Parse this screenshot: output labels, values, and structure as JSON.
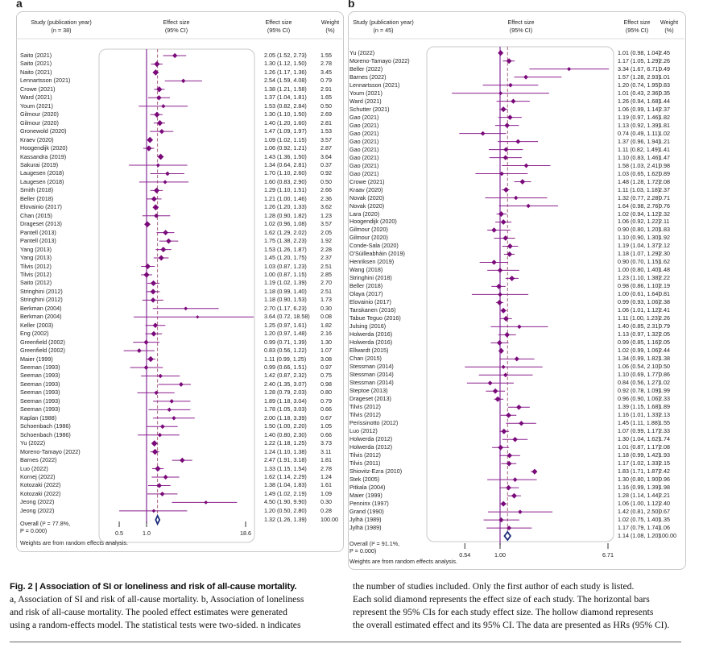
{
  "colors": {
    "marker": "#7a0a7a",
    "ci": "#8b1f8e",
    "null_line": "#8e3ea0",
    "pooled_line": "#a4687a",
    "overall": "#1a2a7a"
  },
  "caption": {
    "title": "Fig. 2 | Association of SI or loneliness and risk of all-cause mortality.",
    "left_lines": [
      "a, Association of SI and risk of all-cause mortality. b, Association of loneliness",
      "and risk of all-cause mortality. The pooled effect estimates were generated",
      "using a random-effects model. The statistical tests were two-sided. n indicates"
    ],
    "right_lines": [
      "the number of studies included. Only the first author of each study is listed.",
      "Each solid diamond represents the effect size of each study. The horizontal bars",
      "represent the 95% CIs for each study effect size. The hollow diamond represents",
      "the overall estimated effect and its 95% CI. The data are presented as HRs (95% CI)."
    ]
  },
  "chart_data": [
    {
      "panel": "a",
      "type": "forest",
      "scale": "log",
      "header": {
        "study": "Study (publication year)",
        "n": "(n = 38)",
        "effect": "Effect size",
        "ci": "(95% CI)",
        "weight": "Weight",
        "pct": "(%)"
      },
      "ticks": [
        {
          "v": 0.5,
          "label": "0.5"
        },
        {
          "v": 1.0,
          "label": "1.0"
        },
        {
          "v": 18.6,
          "label": "18.6"
        }
      ],
      "overall": {
        "label1": "Overall (I² = 77.8%,",
        "label2": "P = 0.000)",
        "est": 1.32,
        "lo": 1.26,
        "hi": 1.39,
        "weight": "100.00"
      },
      "note": "Weights are from random effects analysis.",
      "studies": [
        [
          "Saito (2021)",
          2.05,
          1.52,
          2.73,
          "1.55"
        ],
        [
          "Saito (2021)",
          1.3,
          1.12,
          1.5,
          "2.78"
        ],
        [
          "Naito (2021)",
          1.26,
          1.17,
          1.36,
          "3.45"
        ],
        [
          "Lennartsson (2021)",
          2.54,
          1.59,
          4.08,
          "0.79"
        ],
        [
          "Crowe (2021)",
          1.38,
          1.21,
          1.58,
          "2.91"
        ],
        [
          "Ward (2021)",
          1.37,
          1.04,
          1.81,
          "1.65"
        ],
        [
          "Youm (2021)",
          1.53,
          0.82,
          2.84,
          "0.50"
        ],
        [
          "Gilmour (2020)",
          1.3,
          1.1,
          1.5,
          "2.69"
        ],
        [
          "Gilmour (2020)",
          1.4,
          1.2,
          1.6,
          "2.81"
        ],
        [
          "Gronewold (2020)",
          1.47,
          1.09,
          1.97,
          "1.53"
        ],
        [
          "Kraev (2020)",
          1.09,
          1.02,
          1.15,
          "3.57"
        ],
        [
          "Hoogendijk (2020)",
          1.06,
          0.92,
          1.21,
          "2.87"
        ],
        [
          "Kassandra (2019)",
          1.43,
          1.36,
          1.5,
          "3.64"
        ],
        [
          "Sakurai (2019)",
          1.34,
          0.64,
          2.81,
          "0.37"
        ],
        [
          "Laugesen (2018)",
          1.7,
          1.1,
          2.6,
          "0.92"
        ],
        [
          "Laugesen (2018)",
          1.6,
          0.83,
          2.9,
          "0.50"
        ],
        [
          "Smith (2018)",
          1.29,
          1.1,
          1.51,
          "2.66"
        ],
        [
          "Beller (2018)",
          1.21,
          1.0,
          1.46,
          "2.36"
        ],
        [
          "Elovainio (2017)",
          1.26,
          1.2,
          1.33,
          "3.62"
        ],
        [
          "Chan (2015)",
          1.28,
          0.9,
          1.82,
          "1.23"
        ],
        [
          "Drageset (2013)",
          1.02,
          0.96,
          1.08,
          "3.57"
        ],
        [
          "Pantell (2013)",
          1.62,
          1.29,
          2.02,
          "2.05"
        ],
        [
          "Pantell (2013)",
          1.75,
          1.38,
          2.23,
          "1.92"
        ],
        [
          "Yang (2013)",
          1.53,
          1.26,
          1.87,
          "2.28"
        ],
        [
          "Yang (2013)",
          1.45,
          1.2,
          1.75,
          "2.37"
        ],
        [
          "Tilvis (2012)",
          1.03,
          0.87,
          1.23,
          "2.51"
        ],
        [
          "Tilvis (2012)",
          1.0,
          0.87,
          1.15,
          "2.85"
        ],
        [
          "Saito (2012)",
          1.19,
          1.02,
          1.39,
          "2.70"
        ],
        [
          "Stringhini (2012)",
          1.18,
          0.99,
          1.4,
          "2.51"
        ],
        [
          "Stringhini (2012)",
          1.18,
          0.9,
          1.53,
          "1.73"
        ],
        [
          "Berkman (2004)",
          2.7,
          1.17,
          6.23,
          "0.30"
        ],
        [
          "Berkman (2004)",
          3.64,
          0.72,
          18.58,
          "0.08"
        ],
        [
          "Keller (2003)",
          1.25,
          0.97,
          1.61,
          "1.82"
        ],
        [
          "Eng (2002)",
          1.2,
          0.97,
          1.48,
          "2.16"
        ],
        [
          "Greenfield (2002)",
          0.99,
          0.71,
          1.39,
          "1.30"
        ],
        [
          "Greenfield (2002)",
          0.83,
          0.56,
          1.22,
          "1.07"
        ],
        [
          "Maier (1999)",
          1.11,
          0.99,
          1.25,
          "3.08"
        ],
        [
          "Seeman (1993)",
          0.99,
          0.66,
          1.51,
          "0.97"
        ],
        [
          "Seeman (1993)",
          1.42,
          0.87,
          2.32,
          "0.75"
        ],
        [
          "Seeman (1993)",
          2.4,
          1.35,
          3.07,
          "0.98"
        ],
        [
          "Seeman (1993)",
          1.28,
          0.79,
          2.03,
          "0.80"
        ],
        [
          "Seeman (1993)",
          1.89,
          1.18,
          3.04,
          "0.79"
        ],
        [
          "Seeman (1993)",
          1.78,
          1.05,
          3.03,
          "0.66"
        ],
        [
          "Kaplan (1988)",
          2.0,
          1.18,
          3.39,
          "0.67"
        ],
        [
          "Schoenbach (1986)",
          1.5,
          1.0,
          2.2,
          "1.05"
        ],
        [
          "Schoenbach (1986)",
          1.4,
          0.8,
          2.3,
          "0.66"
        ],
        [
          "Yu (2022)",
          1.22,
          1.18,
          1.25,
          "3.73"
        ],
        [
          "Moreno-Tamayo (2022)",
          1.24,
          1.1,
          1.38,
          "3.11"
        ],
        [
          "Barnes (2022)",
          2.47,
          1.91,
          3.18,
          "1.81"
        ],
        [
          "Luo (2022)",
          1.33,
          1.15,
          1.54,
          "2.78"
        ],
        [
          "Kornej (2022)",
          1.62,
          1.14,
          2.29,
          "1.24"
        ],
        [
          "Kotozaki (2022)",
          1.38,
          1.04,
          1.83,
          "1.61"
        ],
        [
          "Kotozaki (2022)",
          1.49,
          1.02,
          2.19,
          "1.09"
        ],
        [
          "Jeong (2022)",
          4.5,
          1.9,
          9.9,
          "0.30"
        ],
        [
          "Jeong (2022)",
          1.2,
          0.5,
          2.8,
          "0.28"
        ]
      ]
    },
    {
      "panel": "b",
      "type": "forest",
      "scale": "log",
      "header": {
        "study": "Study (publication year)",
        "n": "(n = 45)",
        "effect": "Effect size",
        "ci": "(95% CI)",
        "weight": "Weight",
        "pct": "(%)"
      },
      "ticks": [
        {
          "v": 0.54,
          "label": "0.54"
        },
        {
          "v": 1.0,
          "label": "1.00"
        },
        {
          "v": 6.71,
          "label": "6.71"
        }
      ],
      "overall": {
        "label1": "Overall (I² = 91.1%,",
        "label2": "P = 0.000)",
        "est": 1.14,
        "lo": 1.08,
        "hi": 1.2,
        "weight": "100.00"
      },
      "note": "Weights are from random effects analysis.",
      "studies": [
        [
          "Yu (2022)",
          1.01,
          0.98,
          1.04,
          "2.45"
        ],
        [
          "Moreno-Tamayo (2022)",
          1.17,
          1.05,
          1.29,
          "2.26"
        ],
        [
          "Beller (2022)",
          3.34,
          1.67,
          6.71,
          "0.49"
        ],
        [
          "Barnes (2022)",
          1.57,
          1.28,
          2.93,
          "1.01"
        ],
        [
          "Lennartsson (2021)",
          1.2,
          0.74,
          1.95,
          "0.83"
        ],
        [
          "Youm (2021)",
          1.01,
          0.43,
          2.36,
          "0.35"
        ],
        [
          "Ward (2021)",
          1.26,
          0.94,
          1.68,
          "1.44"
        ],
        [
          "Schutter (2021)",
          1.06,
          0.99,
          1.14,
          "2.37"
        ],
        [
          "Gao (2021)",
          1.19,
          0.97,
          1.46,
          "1.82"
        ],
        [
          "Gao (2021)",
          1.13,
          0.92,
          1.39,
          "1.81"
        ],
        [
          "Gao (2021)",
          0.74,
          0.49,
          1.11,
          "1.02"
        ],
        [
          "Gao (2021)",
          1.37,
          0.96,
          1.94,
          "1.21"
        ],
        [
          "Gao (2021)",
          1.11,
          0.82,
          1.49,
          "1.41"
        ],
        [
          "Gao (2021)",
          1.1,
          0.83,
          1.46,
          "1.47"
        ],
        [
          "Gao (2021)",
          1.58,
          1.03,
          2.41,
          "0.98"
        ],
        [
          "Gao (2021)",
          1.03,
          0.65,
          1.62,
          "0.89"
        ],
        [
          "Crowe (2021)",
          1.48,
          1.28,
          1.72,
          "2.08"
        ],
        [
          "Kraav (2020)",
          1.11,
          1.03,
          1.18,
          "2.37"
        ],
        [
          "Novak (2020)",
          1.32,
          0.77,
          2.28,
          "0.71"
        ],
        [
          "Novak (2020)",
          1.64,
          0.98,
          2.76,
          "0.76"
        ],
        [
          "Lara (2020)",
          1.02,
          0.94,
          1.12,
          "2.32"
        ],
        [
          "Hoogendijk (2020)",
          1.06,
          0.92,
          1.22,
          "2.11"
        ],
        [
          "Gilmour (2020)",
          0.9,
          0.8,
          1.2,
          "1.83"
        ],
        [
          "Gilmour (2020)",
          1.1,
          0.9,
          1.3,
          "1.92"
        ],
        [
          "Conde-Sala (2020)",
          1.19,
          1.04,
          1.37,
          "2.12"
        ],
        [
          "O'Súilleabháin (2019)",
          1.18,
          1.07,
          1.29,
          "2.30"
        ],
        [
          "Henriksen (2019)",
          0.9,
          0.7,
          1.15,
          "1.62"
        ],
        [
          "Wang (2018)",
          1.0,
          0.8,
          1.4,
          "1.48"
        ],
        [
          "Stringhini (2018)",
          1.23,
          1.1,
          1.38,
          "2.22"
        ],
        [
          "Beller (2018)",
          0.98,
          0.86,
          1.1,
          "2.19"
        ],
        [
          "Olaya (2017)",
          1.0,
          0.61,
          1.64,
          "0.81"
        ],
        [
          "Elovainio (2017)",
          0.99,
          0.93,
          1.06,
          "2.38"
        ],
        [
          "Tanskanen (2016)",
          1.06,
          1.01,
          1.12,
          "2.41"
        ],
        [
          "Tabue Teguo (2016)",
          1.11,
          1.0,
          1.23,
          "2.26"
        ],
        [
          "Julsing (2016)",
          1.4,
          0.85,
          2.31,
          "0.79"
        ],
        [
          "Holwerda (2016)",
          1.13,
          0.97,
          1.32,
          "2.05"
        ],
        [
          "Holwerda (2016)",
          0.99,
          0.85,
          1.16,
          "2.05"
        ],
        [
          "Ellwardt (2015)",
          1.02,
          0.99,
          1.06,
          "2.44"
        ],
        [
          "Chan (2015)",
          1.34,
          0.99,
          1.82,
          "1.38"
        ],
        [
          "Stessman (2014)",
          1.06,
          0.54,
          2.1,
          "0.50"
        ],
        [
          "Stessman (2014)",
          1.1,
          0.69,
          1.77,
          "0.86"
        ],
        [
          "Stessman (2014)",
          0.84,
          0.56,
          1.27,
          "1.02"
        ],
        [
          "Steptoe (2013)",
          0.92,
          0.78,
          1.09,
          "1.99"
        ],
        [
          "Drageset (2013)",
          0.96,
          0.9,
          1.06,
          "2.33"
        ],
        [
          "Tilvis (2012)",
          1.39,
          1.15,
          1.68,
          "1.89"
        ],
        [
          "Tilvis (2012)",
          1.16,
          1.01,
          1.33,
          "2.13"
        ],
        [
          "Perissinotto (2012)",
          1.45,
          1.11,
          1.88,
          "1.55"
        ],
        [
          "Luo (2012)",
          1.07,
          0.99,
          1.17,
          "2.33"
        ],
        [
          "Holwerda (2012)",
          1.3,
          1.04,
          1.62,
          "1.74"
        ],
        [
          "Holwerda (2012)",
          1.01,
          0.87,
          1.17,
          "2.08"
        ],
        [
          "Tilvis (2012)",
          1.18,
          0.99,
          1.42,
          "1.93"
        ],
        [
          "Tilvis (2011)",
          1.17,
          1.02,
          1.33,
          "2.15"
        ],
        [
          "Shiovitz-Ezra (2010)",
          1.83,
          1.71,
          1.87,
          "2.42"
        ],
        [
          "Stek (2005)",
          1.3,
          0.8,
          1.9,
          "0.96"
        ],
        [
          "Pitkala (2004)",
          1.16,
          0.99,
          1.39,
          "1.98"
        ],
        [
          "Maier (1999)",
          1.28,
          1.14,
          1.44,
          "2.21"
        ],
        [
          "Penninx (1997)",
          1.06,
          1.0,
          1.12,
          "2.40"
        ],
        [
          "Grand (1990)",
          1.42,
          0.81,
          2.5,
          "0.67"
        ],
        [
          "Jylhä (1989)",
          1.02,
          0.75,
          1.4,
          "1.35"
        ],
        [
          "Jylhä (1989)",
          1.17,
          0.79,
          1.74,
          "1.06"
        ]
      ]
    }
  ]
}
